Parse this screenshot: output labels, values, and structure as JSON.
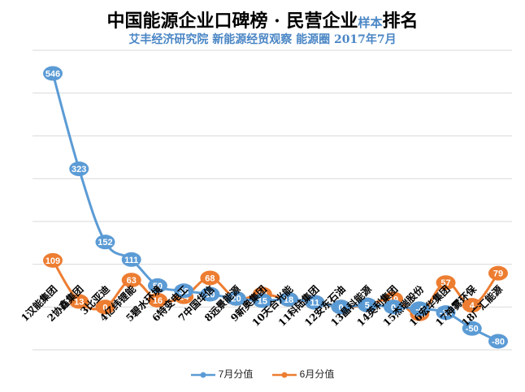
{
  "chart_data": {
    "type": "line",
    "title_main": "中国能源企业口碑榜 · 民营企业",
    "title_suffix": "样本",
    "title_end": "排名",
    "subtitle": "艾丰经济研究院 新能源经贸观察 能源圈 2017年7月",
    "categories": [
      "1汉能集团",
      "2协鑫集团",
      "3比亚迪",
      "4亿纬锂能",
      "5碧水环境",
      "6特变电工",
      "7中国华信",
      "8远景能源",
      "9新奥集团",
      "10天合光能",
      "11科陆集团",
      "12安东石油",
      "13晶科能源",
      "14英利集团",
      "15杰瑞股份",
      "16宏华集团",
      "17神雾环保",
      "18广汇能源"
    ],
    "series": [
      {
        "name": "7月分值",
        "color": "#5b9bd5",
        "values": [
          546,
          323,
          152,
          111,
          50,
          38,
          30,
          20,
          15,
          18,
          11,
          0,
          5,
          0,
          -4,
          -13,
          -50,
          -80
        ],
        "labels": [
          "546",
          "323",
          "152",
          "111",
          "50",
          "38",
          "30",
          "20",
          "15",
          "18",
          "11",
          "0",
          "5",
          "0",
          "-4",
          "-13",
          "-50",
          "-80"
        ]
      },
      {
        "name": "6月分值",
        "color": "#ed7d31",
        "values": [
          109,
          13,
          0,
          63,
          16,
          24,
          68,
          20,
          30,
          18,
          11,
          0,
          5,
          19,
          -16,
          57,
          4,
          79
        ],
        "labels": [
          "109",
          "13",
          "0",
          "63",
          "16",
          "24",
          "68",
          "20",
          "30",
          "18",
          "11",
          "0",
          "5",
          "19",
          "-16",
          "57",
          "4",
          "79"
        ]
      }
    ],
    "ylim": [
      -100,
      600
    ],
    "grid": true,
    "legend_position": "bottom"
  }
}
